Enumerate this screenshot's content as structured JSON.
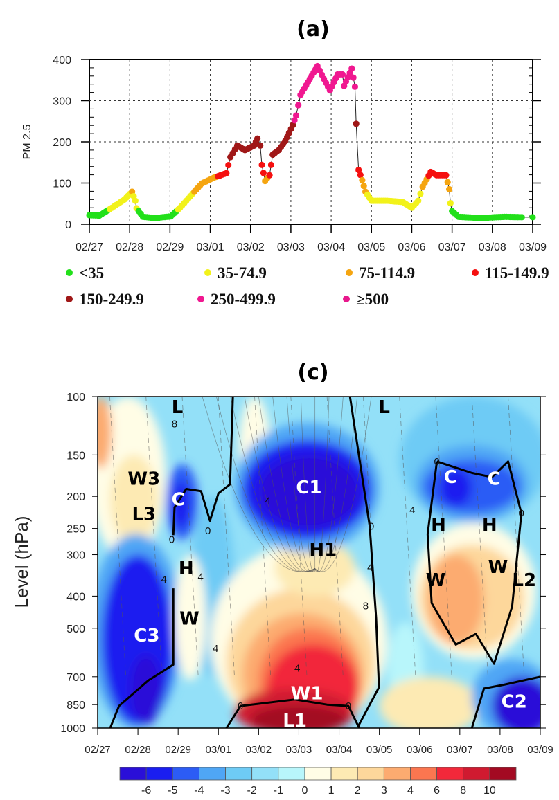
{
  "panel_a": {
    "title": "(a)",
    "chart_data": {
      "type": "scatter",
      "title": "(a)",
      "xlabel": "",
      "ylabel": "PM 2.5",
      "ylim": [
        0,
        400
      ],
      "yticks": [
        0,
        100,
        200,
        300,
        400
      ],
      "ytick_labels": [
        "0",
        "100",
        "200",
        "300",
        "400"
      ],
      "xlim": [
        0,
        11
      ],
      "xtick_labels": [
        "02/27",
        "02/28",
        "02/29",
        "03/01",
        "03/02",
        "03/03",
        "03/04",
        "03/05",
        "03/06",
        "03/07",
        "03/08",
        "03/09"
      ],
      "x_unit": "days since 02/27",
      "grid": true,
      "points": [
        [
          0,
          22
        ],
        [
          0.25,
          21
        ],
        [
          0.56,
          40
        ],
        [
          0.87,
          60
        ],
        [
          1.06,
          79
        ],
        [
          1.14,
          57
        ],
        [
          1.17,
          39
        ],
        [
          1.33,
          18
        ],
        [
          1.63,
          15
        ],
        [
          2.02,
          19
        ],
        [
          2.25,
          40
        ],
        [
          2.56,
          74
        ],
        [
          2.79,
          99
        ],
        [
          3.09,
          113
        ],
        [
          3.4,
          124
        ],
        [
          3.5,
          163
        ],
        [
          3.67,
          191
        ],
        [
          3.86,
          180
        ],
        [
          4.09,
          191
        ],
        [
          4.17,
          208
        ],
        [
          4.24,
          191
        ],
        [
          4.28,
          144
        ],
        [
          4.36,
          105
        ],
        [
          4.47,
          119
        ],
        [
          4.55,
          169
        ],
        [
          4.7,
          180
        ],
        [
          4.86,
          202
        ],
        [
          5.05,
          241
        ],
        [
          5.13,
          264
        ],
        [
          5.24,
          314
        ],
        [
          5.47,
          353
        ],
        [
          5.66,
          384
        ],
        [
          5.82,
          353
        ],
        [
          5.97,
          325
        ],
        [
          6.16,
          364
        ],
        [
          6.28,
          364
        ],
        [
          6.32,
          336
        ],
        [
          6.51,
          378
        ],
        [
          6.59,
          334
        ],
        [
          6.62,
          244
        ],
        [
          6.68,
          132
        ],
        [
          6.77,
          107
        ],
        [
          6.85,
          79
        ],
        [
          7.0,
          57
        ],
        [
          7.39,
          57
        ],
        [
          7.77,
          54
        ],
        [
          8.0,
          40
        ],
        [
          8.16,
          57
        ],
        [
          8.27,
          91
        ],
        [
          8.47,
          127
        ],
        [
          8.62,
          119
        ],
        [
          8.85,
          119
        ],
        [
          8.93,
          85
        ],
        [
          8.96,
          51
        ],
        [
          9.0,
          32
        ],
        [
          9.16,
          18
        ],
        [
          9.69,
          15
        ],
        [
          10.3,
          18
        ],
        [
          10.73,
          17
        ],
        [
          11.0,
          17
        ]
      ],
      "legend": [
        {
          "label": "<35",
          "max": 35,
          "color": "#22e01a"
        },
        {
          "label": "35-74.9",
          "max": 75,
          "color": "#f2f21a"
        },
        {
          "label": "75-114.9",
          "max": 115,
          "color": "#f5a510"
        },
        {
          "label": "115-149.9",
          "max": 150,
          "color": "#f51010"
        },
        {
          "label": "150-249.9",
          "max": 250,
          "color": "#a01818"
        },
        {
          "label": "250-499.9",
          "max": 500,
          "color": "#f01890"
        },
        {
          "label": "≥500",
          "max": 100000,
          "color": "#e8188c"
        }
      ]
    }
  },
  "panel_c": {
    "title": "(c)",
    "chart_data": {
      "type": "heatmap",
      "title": "(c)",
      "ylabel": "Level (hPa)",
      "xlabel": "",
      "xlim": [
        0,
        11
      ],
      "ylim": [
        1000,
        100
      ],
      "yscale": "log",
      "yticks": [
        100,
        150,
        200,
        250,
        300,
        400,
        500,
        700,
        850,
        1000
      ],
      "ytick_labels": [
        "100",
        "150",
        "200",
        "250",
        "300",
        "400",
        "500",
        "700",
        "850",
        "1000"
      ],
      "xtick_labels": [
        "02/27",
        "02/28",
        "02/29",
        "03/01",
        "03/02",
        "03/03",
        "03/04",
        "03/05",
        "03/06",
        "03/07",
        "03/08",
        "03/09"
      ],
      "colorbar": {
        "labels": [
          "-6",
          "-5",
          "-4",
          "-3",
          "-2",
          "-1",
          "0",
          "1",
          "2",
          "3",
          "4",
          "6",
          "8",
          "10"
        ],
        "colors": [
          "#2a0fd8",
          "#1a1ef0",
          "#2c5cf5",
          "#4fa6f5",
          "#6ecbf5",
          "#93e0f8",
          "#b8f6fb",
          "#fffde6",
          "#fdeab3",
          "#fdd79b",
          "#fcab70",
          "#fb7650",
          "#f2283a",
          "#d01a30",
          "#a30a22"
        ]
      },
      "background_bin": 5,
      "regions": [
        {
          "bin": 4,
          "day": [
            7.5,
            11.2
          ],
          "p": [
            100,
            240
          ]
        },
        {
          "bin": 4,
          "day": [
            2.3,
            3.4
          ],
          "p": [
            200,
            700
          ]
        },
        {
          "bin": 7,
          "day": [
            3.5,
            4.3
          ],
          "p": [
            100,
            210
          ]
        },
        {
          "bin": 7,
          "day": [
            -0.2,
            1.7
          ],
          "p": [
            100,
            310
          ]
        },
        {
          "bin": 8,
          "day": [
            0.3,
            1.5
          ],
          "p": [
            150,
            280
          ]
        },
        {
          "bin": 10,
          "day": [
            -0.2,
            0.35
          ],
          "p": [
            100,
            165
          ]
        },
        {
          "bin": 6,
          "day": [
            7.2,
            8.1
          ],
          "p": [
            480,
            900
          ]
        },
        {
          "bin": 3,
          "day": [
            -0.2,
            2.1
          ],
          "p": [
            260,
            1000
          ]
        },
        {
          "bin": 1,
          "day": [
            0.1,
            1.9
          ],
          "p": [
            300,
            980
          ]
        },
        {
          "bin": 0,
          "day": [
            0.8,
            1.6
          ],
          "p": [
            600,
            980
          ]
        },
        {
          "bin": 2,
          "day": [
            1.7,
            2.5
          ],
          "p": [
            160,
            270
          ]
        },
        {
          "bin": 1,
          "day": [
            1.85,
            2.3
          ],
          "p": [
            180,
            250
          ]
        },
        {
          "bin": 7,
          "day": [
            1.9,
            2.7
          ],
          "p": [
            300,
            720
          ]
        },
        {
          "bin": 7,
          "day": [
            2.8,
            7.2
          ],
          "p": [
            280,
            1050
          ]
        },
        {
          "bin": 9,
          "day": [
            3.2,
            6.9
          ],
          "p": [
            380,
            1050
          ]
        },
        {
          "bin": 10,
          "day": [
            3.6,
            6.6
          ],
          "p": [
            450,
            1050
          ]
        },
        {
          "bin": 11,
          "day": [
            4.0,
            6.5
          ],
          "p": [
            500,
            1050
          ]
        },
        {
          "bin": 12,
          "day": [
            4.2,
            6.5
          ],
          "p": [
            560,
            1050
          ]
        },
        {
          "bin": 13,
          "day": [
            3.4,
            6.4
          ],
          "p": [
            760,
            1050
          ]
        },
        {
          "bin": 14,
          "day": [
            3.8,
            6.2
          ],
          "p": [
            850,
            1050
          ]
        },
        {
          "bin": 8,
          "day": [
            4.4,
            6.4
          ],
          "p": [
            270,
            400
          ]
        },
        {
          "bin": 3,
          "day": [
            3.4,
            7.0
          ],
          "p": [
            120,
            295
          ]
        },
        {
          "bin": 1,
          "day": [
            3.6,
            6.8
          ],
          "p": [
            135,
            270
          ]
        },
        {
          "bin": 0,
          "day": [
            4.0,
            6.5
          ],
          "p": [
            150,
            250
          ]
        },
        {
          "bin": 7,
          "day": [
            7.8,
            10.9
          ],
          "p": [
            240,
            620
          ]
        },
        {
          "bin": 9,
          "day": [
            8.0,
            10.6
          ],
          "p": [
            280,
            580
          ]
        },
        {
          "bin": 10,
          "day": [
            8.2,
            9.6
          ],
          "p": [
            300,
            560
          ]
        },
        {
          "bin": 3,
          "day": [
            7.9,
            10.7
          ],
          "p": [
            140,
            240
          ]
        },
        {
          "bin": 2,
          "day": [
            8.1,
            10.5
          ],
          "p": [
            155,
            225
          ]
        },
        {
          "bin": 1,
          "day": [
            8.5,
            9.3
          ],
          "p": [
            165,
            215
          ]
        },
        {
          "bin": 8,
          "day": [
            7.0,
            9.5
          ],
          "p": [
            700,
            1050
          ]
        },
        {
          "bin": 3,
          "day": [
            9.3,
            11.3
          ],
          "p": [
            620,
            1050
          ]
        },
        {
          "bin": 0,
          "day": [
            9.8,
            11.3
          ],
          "p": [
            700,
            1050
          ]
        }
      ],
      "zero_contours": [
        [
          [
            6.27,
            100
          ],
          [
            6.76,
            246
          ],
          [
            6.92,
            466
          ],
          [
            6.99,
            754
          ],
          [
            6.47,
            990
          ]
        ],
        [
          [
            3.36,
            100
          ],
          [
            3.29,
            184
          ],
          [
            3.0,
            196
          ],
          [
            2.79,
            237
          ],
          [
            2.57,
            193
          ],
          [
            2.2,
            190
          ],
          [
            1.91,
            216
          ],
          [
            1.88,
            262
          ]
        ],
        [
          [
            1.88,
            379
          ],
          [
            1.88,
            644
          ],
          [
            1.26,
            718
          ],
          [
            0.53,
            858
          ],
          [
            0.31,
            1000
          ]
        ],
        [
          [
            3.2,
            1000
          ],
          [
            3.55,
            858
          ],
          [
            4.9,
            820
          ],
          [
            5.7,
            850
          ],
          [
            6.23,
            858
          ],
          [
            6.5,
            1000
          ]
        ],
        [
          [
            8.43,
            157
          ],
          [
            8.2,
            260
          ],
          [
            8.3,
            420
          ],
          [
            8.9,
            560
          ],
          [
            9.4,
            520
          ],
          [
            9.85,
            640
          ],
          [
            10.3,
            430
          ],
          [
            10.53,
            225
          ],
          [
            10.2,
            157
          ],
          [
            9.8,
            175
          ],
          [
            9.3,
            170
          ],
          [
            8.43,
            157
          ]
        ],
        [
          [
            9.3,
            1000
          ],
          [
            9.6,
            760
          ],
          [
            10.1,
            740
          ],
          [
            11,
            700
          ]
        ]
      ],
      "contour_labels": [
        {
          "text": "8",
          "day": 1.91,
          "p": 121
        },
        {
          "text": "0",
          "day": 1.84,
          "p": 270
        },
        {
          "text": "0",
          "day": 2.74,
          "p": 254
        },
        {
          "text": "4",
          "day": 1.65,
          "p": 356
        },
        {
          "text": "4",
          "day": 2.56,
          "p": 350
        },
        {
          "text": "4",
          "day": 4.23,
          "p": 206
        },
        {
          "text": "0",
          "day": 6.8,
          "p": 246
        },
        {
          "text": "4",
          "day": 6.77,
          "p": 328
        },
        {
          "text": "8",
          "day": 6.66,
          "p": 428
        },
        {
          "text": "4",
          "day": 2.93,
          "p": 576
        },
        {
          "text": "4",
          "day": 4.96,
          "p": 660
        },
        {
          "text": "0",
          "day": 3.55,
          "p": 858
        },
        {
          "text": "0",
          "day": 6.23,
          "p": 858
        },
        {
          "text": "4",
          "day": 7.82,
          "p": 220
        },
        {
          "text": "0",
          "day": 8.43,
          "p": 157
        },
        {
          "text": "0",
          "day": 10.53,
          "p": 225
        }
      ],
      "annotations": [
        {
          "text": "L",
          "day": 1.98,
          "p": 107,
          "color": "#000000"
        },
        {
          "text": "L",
          "day": 7.12,
          "p": 107,
          "color": "#000000"
        },
        {
          "text": "W3",
          "day": 1.15,
          "p": 176,
          "color": "#000000"
        },
        {
          "text": "L3",
          "day": 1.15,
          "p": 225,
          "color": "#000000"
        },
        {
          "text": "C",
          "day": 2.0,
          "p": 203,
          "color": "#ffffff"
        },
        {
          "text": "C1",
          "day": 5.25,
          "p": 187,
          "color": "#ffffff"
        },
        {
          "text": "H1",
          "day": 5.6,
          "p": 288,
          "color": "#000000"
        },
        {
          "text": "H",
          "day": 2.2,
          "p": 328,
          "color": "#000000"
        },
        {
          "text": "W",
          "day": 2.28,
          "p": 465,
          "color": "#000000"
        },
        {
          "text": "C3",
          "day": 1.22,
          "p": 523,
          "color": "#ffffff"
        },
        {
          "text": "W1",
          "day": 5.2,
          "p": 780,
          "color": "#ffffff"
        },
        {
          "text": "L1",
          "day": 4.9,
          "p": 945,
          "color": "#ffffff"
        },
        {
          "text": "C",
          "day": 8.77,
          "p": 174,
          "color": "#ffffff"
        },
        {
          "text": "C",
          "day": 9.85,
          "p": 176,
          "color": "#ffffff"
        },
        {
          "text": "H",
          "day": 8.47,
          "p": 243,
          "color": "#000000"
        },
        {
          "text": "H",
          "day": 9.74,
          "p": 243,
          "color": "#000000"
        },
        {
          "text": "W",
          "day": 8.4,
          "p": 356,
          "color": "#000000"
        },
        {
          "text": "W",
          "day": 9.95,
          "p": 325,
          "color": "#000000"
        },
        {
          "text": "L2",
          "day": 10.6,
          "p": 356,
          "color": "#000000"
        },
        {
          "text": "C2",
          "day": 10.35,
          "p": 828,
          "color": "#ffffff"
        }
      ]
    }
  }
}
